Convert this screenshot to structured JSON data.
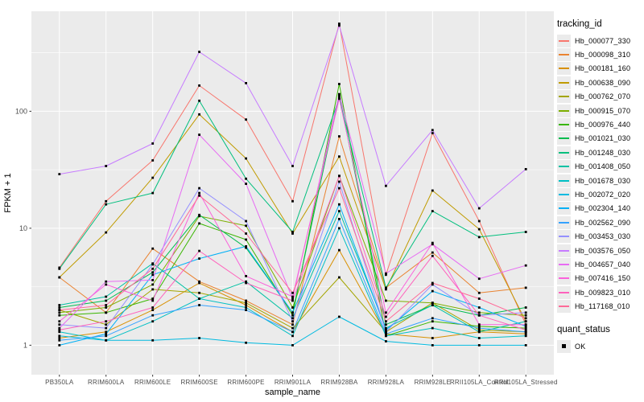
{
  "figure": {
    "x_axis_title": "sample_name",
    "y_axis_title": "FPKM + 1",
    "legend_title": "tracking_id",
    "quant_legend_title": "quant_status",
    "quant_legend_items": [
      {
        "label": "OK",
        "shape": "square",
        "color": "#000000"
      }
    ]
  },
  "chart_data": {
    "type": "line",
    "title": "",
    "xlabel": "sample_name",
    "ylabel": "FPKM + 1",
    "y_scale": "log10",
    "ylim": [
      0.56,
      716
    ],
    "y_ticks": [
      1,
      10,
      100
    ],
    "y_tick_labels": [
      "1",
      "10",
      "100"
    ],
    "y_minor_ticks": [
      3.162,
      31.62,
      316.2
    ],
    "grid": "white major+minor on gray panel",
    "panel_bg": "#ebebeb",
    "gridline_color": "#ffffff",
    "axis_text_color": "#4d4d4d",
    "point_color": "#000000",
    "legend_position": "right",
    "legend_title": "tracking_id",
    "quant_status": {
      "title": "quant_status",
      "items": [
        "OK"
      ]
    },
    "categories": [
      "PB350LA",
      "RRIM600LA",
      "RRIM600LE",
      "RRIM600SE",
      "RRIM600PE",
      "RRIM901LA",
      "RRIM928BA",
      "RRIM928LA",
      "RRIM928LE",
      "RRII105LA_Control",
      "RRII105LA_Stressed"
    ],
    "series": [
      {
        "name": "Hb_000077_330",
        "color": "#F8766D",
        "values": [
          4.6,
          17,
          38,
          166,
          85,
          17,
          560,
          4.0,
          65,
          11.5,
          1.5
        ]
      },
      {
        "name": "Hb_000098_310",
        "color": "#EA8331",
        "values": [
          3.8,
          1.9,
          6.7,
          3.5,
          2.4,
          1.5,
          61,
          3.1,
          6.2,
          2.8,
          3.1
        ]
      },
      {
        "name": "Hb_000181_160",
        "color": "#D89000",
        "values": [
          1.15,
          1.3,
          2.0,
          3.4,
          2.2,
          1.3,
          6.5,
          1.25,
          1.15,
          1.3,
          1.25
        ]
      },
      {
        "name": "Hb_000638_090",
        "color": "#C09B00",
        "values": [
          3.8,
          9.2,
          27,
          94,
          39.5,
          9.0,
          41,
          3.0,
          21,
          9.8,
          1.6
        ]
      },
      {
        "name": "Hb_000762_070",
        "color": "#A3A500",
        "values": [
          2.0,
          1.5,
          3.0,
          2.8,
          2.3,
          1.4,
          3.8,
          1.3,
          2.3,
          1.35,
          1.3
        ]
      },
      {
        "name": "Hb_000915_070",
        "color": "#7CAE00",
        "values": [
          1.9,
          2.1,
          3.3,
          12.7,
          10.5,
          2.1,
          28,
          2.4,
          2.3,
          1.9,
          1.8
        ]
      },
      {
        "name": "Hb_000976_440",
        "color": "#39B600",
        "values": [
          1.8,
          1.9,
          2.5,
          11,
          8.0,
          1.8,
          171,
          1.2,
          1.6,
          1.45,
          1.4
        ]
      },
      {
        "name": "Hb_001021_030",
        "color": "#00BB4E",
        "values": [
          2.1,
          2.4,
          4.2,
          13,
          6.8,
          1.9,
          135,
          1.5,
          2.2,
          1.8,
          2.1
        ]
      },
      {
        "name": "Hb_001248_030",
        "color": "#00BF7D",
        "values": [
          4.5,
          16,
          20,
          123,
          26.5,
          9.3,
          130,
          3.1,
          14,
          8.4,
          9.3
        ]
      },
      {
        "name": "Hb_001408_050",
        "color": "#00C1A3",
        "values": [
          2.2,
          2.6,
          5.0,
          2.5,
          3.5,
          1.7,
          14,
          1.4,
          2.2,
          1.3,
          1.6
        ]
      },
      {
        "name": "Hb_001678_030",
        "color": "#00BFC4",
        "values": [
          1.3,
          1.1,
          1.6,
          2.5,
          2.1,
          1.2,
          10,
          1.2,
          1.4,
          1.15,
          1.2
        ]
      },
      {
        "name": "Hb_002072_020",
        "color": "#00BAE0",
        "values": [
          1.2,
          1.1,
          1.1,
          1.15,
          1.05,
          1.0,
          1.75,
          1.08,
          1.0,
          1.0,
          1.0
        ]
      },
      {
        "name": "Hb_002304_140",
        "color": "#00B0F6",
        "values": [
          1.0,
          1.25,
          4.0,
          5.5,
          7.0,
          1.9,
          16,
          1.35,
          2.9,
          2.1,
          1.45
        ]
      },
      {
        "name": "Hb_002562_090",
        "color": "#35A2FF",
        "values": [
          1.1,
          1.2,
          1.8,
          2.2,
          2.0,
          1.3,
          12,
          1.25,
          1.7,
          1.4,
          1.3
        ]
      },
      {
        "name": "Hb_003453_030",
        "color": "#9590FF",
        "values": [
          1.5,
          1.4,
          4.9,
          22,
          11.5,
          1.6,
          25,
          1.3,
          3.3,
          1.8,
          1.9
        ]
      },
      {
        "name": "Hb_003576_050",
        "color": "#C77CFF",
        "values": [
          29,
          34,
          53,
          322,
          174,
          34,
          540,
          23,
          69,
          14.8,
          32
        ]
      },
      {
        "name": "Hb_004657_040",
        "color": "#E76BF3",
        "values": [
          1.4,
          3.5,
          3.6,
          63,
          24,
          2.5,
          140,
          4.1,
          7.3,
          3.7,
          4.8
        ]
      },
      {
        "name": "Hb_007416_150",
        "color": "#FA62DB",
        "values": [
          1.6,
          3.3,
          2.4,
          20,
          3.9,
          2.6,
          128,
          1.9,
          7.5,
          1.5,
          1.5
        ]
      },
      {
        "name": "Hb_009823_010",
        "color": "#FF62BC",
        "values": [
          1.35,
          1.6,
          2.1,
          6.4,
          3.4,
          2.4,
          28,
          1.75,
          5.8,
          1.8,
          1.35
        ]
      },
      {
        "name": "Hb_117168_010",
        "color": "#FF6A98",
        "values": [
          2.0,
          2.2,
          4.5,
          19,
          9.0,
          2.8,
          22,
          1.6,
          3.4,
          2.5,
          1.7
        ]
      }
    ]
  }
}
